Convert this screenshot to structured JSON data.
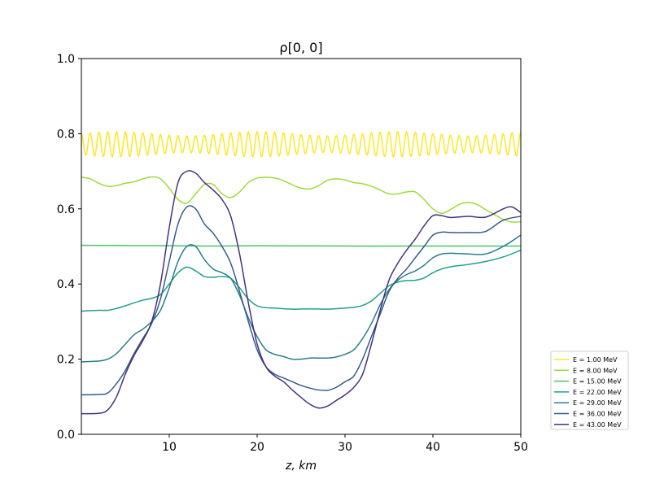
{
  "chart_data": {
    "type": "line",
    "title": "ρ[0, 0]",
    "xlabel": "z, km",
    "ylabel": "",
    "xlim": [
      0,
      50
    ],
    "ylim": [
      0,
      1
    ],
    "xticks": [
      10,
      20,
      30,
      40,
      50
    ],
    "xtick_labels": [
      "10",
      "20",
      "30",
      "40",
      "50"
    ],
    "yticks": [
      0,
      0.2,
      0.4,
      0.6,
      0.8,
      1.0
    ],
    "ytick_labels": [
      "0.0",
      "0.2",
      "0.4",
      "0.6",
      "0.8",
      "1.0"
    ],
    "grid": false,
    "legend_position": "outside-right-bottom",
    "series": [
      {
        "name": "E = 1.00 MeV",
        "color": "#fde725",
        "oscillation": {
          "mean": 0.772,
          "amplitude": 0.028,
          "cycles": 50
        },
        "x": [
          0,
          50
        ],
        "y": [
          0.772,
          0.772
        ]
      },
      {
        "name": "E = 8.00 MeV",
        "color": "#a0da39",
        "x": [
          0,
          1,
          2,
          3,
          4,
          5,
          6,
          7,
          8,
          9,
          10,
          11,
          12,
          13,
          14,
          15,
          16,
          17,
          18,
          19,
          20,
          21,
          22,
          23,
          24,
          25,
          26,
          27,
          28,
          29,
          30,
          31,
          32,
          33,
          34,
          35,
          36,
          37,
          38,
          39,
          40,
          41,
          42,
          43,
          44,
          45,
          46,
          47,
          48,
          49,
          50
        ],
        "y": [
          0.684,
          0.68,
          0.668,
          0.66,
          0.662,
          0.668,
          0.672,
          0.68,
          0.685,
          0.68,
          0.655,
          0.625,
          0.615,
          0.64,
          0.665,
          0.665,
          0.64,
          0.63,
          0.645,
          0.67,
          0.682,
          0.684,
          0.682,
          0.675,
          0.664,
          0.655,
          0.653,
          0.662,
          0.676,
          0.68,
          0.677,
          0.67,
          0.667,
          0.66,
          0.65,
          0.64,
          0.64,
          0.645,
          0.645,
          0.625,
          0.6,
          0.588,
          0.598,
          0.612,
          0.617,
          0.612,
          0.598,
          0.585,
          0.572,
          0.565,
          0.566
        ]
      },
      {
        "name": "E = 15.00 MeV",
        "color": "#4ac16d",
        "x": [
          0,
          10,
          15,
          20,
          30,
          40,
          50
        ],
        "y": [
          0.503,
          0.502,
          0.501,
          0.502,
          0.501,
          0.501,
          0.501
        ]
      },
      {
        "name": "E = 22.00 MeV",
        "color": "#1fa187",
        "x": [
          0,
          2,
          3,
          4,
          5,
          6,
          7,
          8,
          9,
          10,
          11,
          12,
          13,
          14,
          15,
          16,
          17,
          18,
          19,
          20,
          21,
          22,
          24,
          26,
          28,
          30,
          31,
          32,
          33,
          34,
          35,
          36,
          37,
          38,
          39,
          40,
          41,
          42,
          44,
          46,
          48,
          50
        ],
        "y": [
          0.328,
          0.33,
          0.33,
          0.335,
          0.342,
          0.35,
          0.357,
          0.362,
          0.372,
          0.4,
          0.43,
          0.445,
          0.435,
          0.42,
          0.418,
          0.42,
          0.415,
          0.39,
          0.36,
          0.342,
          0.337,
          0.336,
          0.333,
          0.334,
          0.333,
          0.336,
          0.338,
          0.343,
          0.355,
          0.375,
          0.395,
          0.405,
          0.409,
          0.41,
          0.416,
          0.43,
          0.44,
          0.446,
          0.452,
          0.46,
          0.472,
          0.49
        ]
      },
      {
        "name": "E = 29.00 MeV",
        "color": "#277f8e",
        "x": [
          0,
          2,
          3,
          4,
          5,
          6,
          7,
          8,
          9,
          10,
          11,
          12,
          13,
          14,
          15,
          16,
          17,
          18,
          19,
          20,
          21,
          22,
          23,
          24,
          25,
          26,
          27,
          28,
          29,
          30,
          31,
          32,
          33,
          34,
          35,
          36,
          37,
          38,
          39,
          40,
          41,
          42,
          44,
          46,
          48,
          50
        ],
        "y": [
          0.193,
          0.195,
          0.2,
          0.215,
          0.24,
          0.265,
          0.28,
          0.3,
          0.33,
          0.39,
          0.46,
          0.5,
          0.5,
          0.465,
          0.44,
          0.43,
          0.415,
          0.37,
          0.31,
          0.26,
          0.225,
          0.213,
          0.207,
          0.2,
          0.2,
          0.203,
          0.203,
          0.203,
          0.206,
          0.213,
          0.225,
          0.255,
          0.295,
          0.345,
          0.385,
          0.41,
          0.425,
          0.435,
          0.45,
          0.47,
          0.48,
          0.482,
          0.48,
          0.48,
          0.5,
          0.53
        ]
      },
      {
        "name": "E = 36.00 MeV",
        "color": "#365c8d",
        "x": [
          0,
          2,
          3,
          4,
          5,
          6,
          7,
          8,
          9,
          10,
          11,
          12,
          13,
          14,
          15,
          16,
          17,
          18,
          19,
          20,
          21,
          22,
          23,
          24,
          25,
          26,
          27,
          28,
          29,
          30,
          31,
          32,
          33,
          34,
          35,
          36,
          37,
          38,
          39,
          40,
          41,
          42,
          44,
          46,
          48,
          50
        ],
        "y": [
          0.105,
          0.106,
          0.11,
          0.135,
          0.17,
          0.215,
          0.255,
          0.295,
          0.36,
          0.46,
          0.56,
          0.605,
          0.6,
          0.56,
          0.535,
          0.5,
          0.455,
          0.38,
          0.3,
          0.225,
          0.18,
          0.16,
          0.15,
          0.14,
          0.13,
          0.123,
          0.118,
          0.117,
          0.125,
          0.14,
          0.155,
          0.2,
          0.26,
          0.32,
          0.38,
          0.415,
          0.44,
          0.47,
          0.5,
          0.53,
          0.538,
          0.537,
          0.537,
          0.54,
          0.57,
          0.58
        ]
      },
      {
        "name": "E = 43.00 MeV",
        "color": "#46327e",
        "x": [
          0,
          2,
          3,
          4,
          5,
          6,
          7,
          8,
          9,
          10,
          11,
          12,
          13,
          14,
          15,
          16,
          17,
          18,
          19,
          20,
          21,
          22,
          23,
          24,
          25,
          26,
          27,
          28,
          29,
          30,
          31,
          32,
          33,
          34,
          35,
          36,
          37,
          38,
          39,
          40,
          41,
          42,
          44,
          46,
          48,
          49,
          50
        ],
        "y": [
          0.055,
          0.056,
          0.065,
          0.1,
          0.16,
          0.21,
          0.25,
          0.3,
          0.4,
          0.55,
          0.67,
          0.7,
          0.695,
          0.67,
          0.65,
          0.625,
          0.58,
          0.48,
          0.35,
          0.24,
          0.18,
          0.155,
          0.14,
          0.118,
          0.098,
          0.08,
          0.07,
          0.075,
          0.09,
          0.105,
          0.125,
          0.16,
          0.24,
          0.33,
          0.41,
          0.455,
          0.49,
          0.52,
          0.555,
          0.582,
          0.582,
          0.577,
          0.58,
          0.578,
          0.6,
          0.605,
          0.59
        ]
      }
    ]
  }
}
